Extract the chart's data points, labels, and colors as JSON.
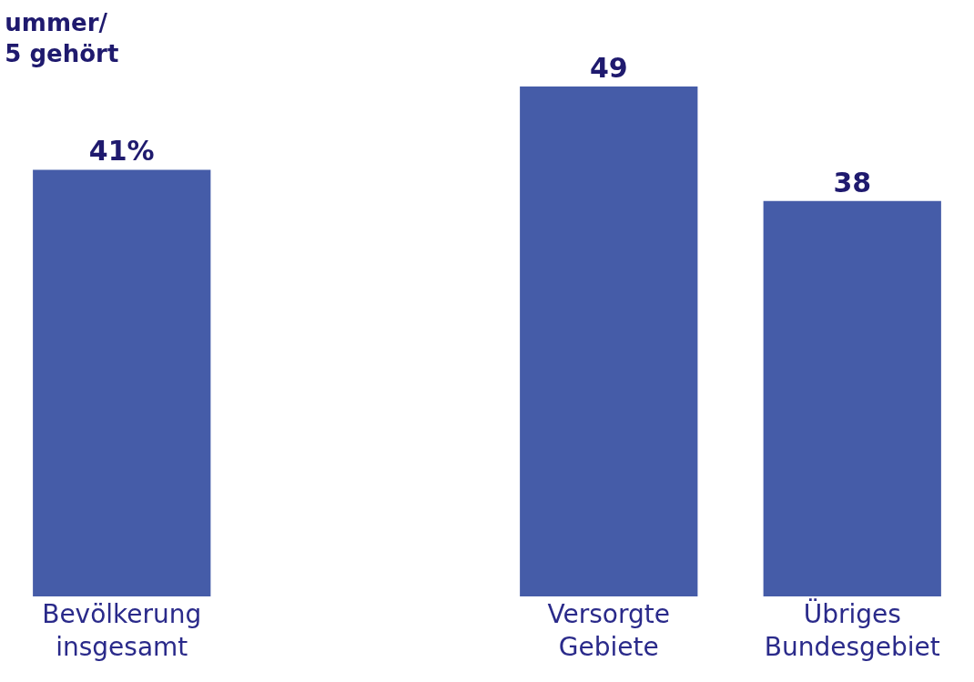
{
  "chart_data": {
    "type": "bar",
    "title": "ummer/\n5 gehört",
    "categories": [
      "Bevölkerung\ninsgesamt",
      null,
      "Versorgte\nGebiete",
      "Übriges\nBundesgebiet"
    ],
    "values": [
      41,
      null,
      49,
      38
    ],
    "value_labels": [
      "41%",
      null,
      "49",
      "38"
    ],
    "color": "#455ca8"
  }
}
